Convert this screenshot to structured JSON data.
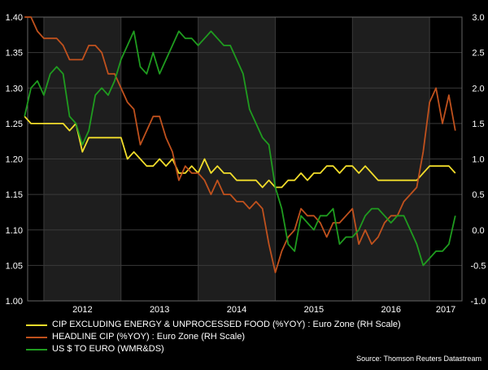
{
  "chart_data": {
    "type": "line",
    "title": "",
    "source": "Source: Thomson Reuters Datastream",
    "x_tick_labels": [
      "2012",
      "2013",
      "2014",
      "2015",
      "2016",
      "2017"
    ],
    "left_axis": {
      "range": [
        1.0,
        1.4
      ],
      "ticks": [
        "1.00",
        "1.05",
        "1.10",
        "1.15",
        "1.20",
        "1.25",
        "1.30",
        "1.35",
        "1.40"
      ]
    },
    "right_axis": {
      "range": [
        -1.0,
        3.0
      ],
      "ticks": [
        "-1.0",
        "-0.5",
        "0.0",
        "0.5",
        "1.0",
        "1.5",
        "2.0",
        "2.5",
        "3.0"
      ]
    },
    "shaded_years": [
      "2012",
      "2014",
      "2016"
    ],
    "grid": true,
    "legend_position": "bottom-left",
    "series": [
      {
        "name": "CIP EXCLUDING ENERGY & UNPROCESSED FOOD (%YOY) : Euro Zone (RH Scale)",
        "axis": "right",
        "color": "#f2dd2b",
        "x": [
          "2011-10",
          "2011-11",
          "2011-12",
          "2012-01",
          "2012-02",
          "2012-03",
          "2012-04",
          "2012-05",
          "2012-06",
          "2012-07",
          "2012-08",
          "2012-09",
          "2012-10",
          "2012-11",
          "2012-12",
          "2013-01",
          "2013-02",
          "2013-03",
          "2013-04",
          "2013-05",
          "2013-06",
          "2013-07",
          "2013-08",
          "2013-09",
          "2013-10",
          "2013-11",
          "2013-12",
          "2014-01",
          "2014-02",
          "2014-03",
          "2014-04",
          "2014-05",
          "2014-06",
          "2014-07",
          "2014-08",
          "2014-09",
          "2014-10",
          "2014-11",
          "2014-12",
          "2015-01",
          "2015-02",
          "2015-03",
          "2015-04",
          "2015-05",
          "2015-06",
          "2015-07",
          "2015-08",
          "2015-09",
          "2015-10",
          "2015-11",
          "2015-12",
          "2016-01",
          "2016-02",
          "2016-03",
          "2016-04",
          "2016-05",
          "2016-06",
          "2016-07",
          "2016-08",
          "2016-09",
          "2016-10",
          "2016-11",
          "2016-12",
          "2017-01",
          "2017-02",
          "2017-03",
          "2017-04",
          "2017-05"
        ],
        "y": [
          1.6,
          1.5,
          1.5,
          1.5,
          1.5,
          1.5,
          1.5,
          1.4,
          1.5,
          1.1,
          1.3,
          1.3,
          1.3,
          1.3,
          1.3,
          1.3,
          1.0,
          1.1,
          1.0,
          0.9,
          0.9,
          1.0,
          0.9,
          1.0,
          0.8,
          0.8,
          0.9,
          0.8,
          1.0,
          0.8,
          0.9,
          0.8,
          0.8,
          0.7,
          0.7,
          0.7,
          0.7,
          0.6,
          0.7,
          0.6,
          0.6,
          0.7,
          0.7,
          0.8,
          0.7,
          0.8,
          0.8,
          0.9,
          0.9,
          0.8,
          0.9,
          0.9,
          0.8,
          0.9,
          0.8,
          0.7,
          0.7,
          0.7,
          0.7,
          0.7,
          0.7,
          0.7,
          0.8,
          0.9,
          0.9,
          0.9,
          0.9,
          0.8
        ]
      },
      {
        "name": "HEADLINE CIP (%YOY) : Euro Zone (RH Scale)",
        "axis": "right",
        "color": "#c0511d",
        "x": [
          "2011-10",
          "2011-11",
          "2011-12",
          "2012-01",
          "2012-02",
          "2012-03",
          "2012-04",
          "2012-05",
          "2012-06",
          "2012-07",
          "2012-08",
          "2012-09",
          "2012-10",
          "2012-11",
          "2012-12",
          "2013-01",
          "2013-02",
          "2013-03",
          "2013-04",
          "2013-05",
          "2013-06",
          "2013-07",
          "2013-08",
          "2013-09",
          "2013-10",
          "2013-11",
          "2013-12",
          "2014-01",
          "2014-02",
          "2014-03",
          "2014-04",
          "2014-05",
          "2014-06",
          "2014-07",
          "2014-08",
          "2014-09",
          "2014-10",
          "2014-11",
          "2014-12",
          "2015-01",
          "2015-02",
          "2015-03",
          "2015-04",
          "2015-05",
          "2015-06",
          "2015-07",
          "2015-08",
          "2015-09",
          "2015-10",
          "2015-11",
          "2015-12",
          "2016-01",
          "2016-02",
          "2016-03",
          "2016-04",
          "2016-05",
          "2016-06",
          "2016-07",
          "2016-08",
          "2016-09",
          "2016-10",
          "2016-11",
          "2016-12",
          "2017-01",
          "2017-02",
          "2017-03",
          "2017-04",
          "2017-05"
        ],
        "y": [
          3.0,
          3.0,
          2.8,
          2.7,
          2.7,
          2.7,
          2.6,
          2.4,
          2.4,
          2.4,
          2.6,
          2.6,
          2.5,
          2.2,
          2.2,
          2.0,
          1.8,
          1.7,
          1.2,
          1.4,
          1.6,
          1.6,
          1.3,
          1.1,
          0.7,
          0.9,
          0.8,
          0.8,
          0.7,
          0.5,
          0.7,
          0.5,
          0.5,
          0.4,
          0.4,
          0.3,
          0.4,
          0.3,
          -0.2,
          -0.6,
          -0.3,
          -0.1,
          0.0,
          0.3,
          0.2,
          0.2,
          0.1,
          -0.1,
          0.1,
          0.1,
          0.2,
          0.3,
          -0.2,
          0.0,
          -0.2,
          -0.1,
          0.1,
          0.2,
          0.2,
          0.4,
          0.5,
          0.6,
          1.1,
          1.8,
          2.0,
          1.5,
          1.9,
          1.4
        ]
      },
      {
        "name": "US $ TO EURO (WMR&DS)",
        "axis": "left",
        "color": "#1f9c1f",
        "x": [
          "2011-10",
          "2011-11",
          "2011-12",
          "2012-01",
          "2012-02",
          "2012-03",
          "2012-04",
          "2012-05",
          "2012-06",
          "2012-07",
          "2012-08",
          "2012-09",
          "2012-10",
          "2012-11",
          "2012-12",
          "2013-01",
          "2013-02",
          "2013-03",
          "2013-04",
          "2013-05",
          "2013-06",
          "2013-07",
          "2013-08",
          "2013-09",
          "2013-10",
          "2013-11",
          "2013-12",
          "2014-01",
          "2014-02",
          "2014-03",
          "2014-04",
          "2014-05",
          "2014-06",
          "2014-07",
          "2014-08",
          "2014-09",
          "2014-10",
          "2014-11",
          "2014-12",
          "2015-01",
          "2015-02",
          "2015-03",
          "2015-04",
          "2015-05",
          "2015-06",
          "2015-07",
          "2015-08",
          "2015-09",
          "2015-10",
          "2015-11",
          "2015-12",
          "2016-01",
          "2016-02",
          "2016-03",
          "2016-04",
          "2016-05",
          "2016-06",
          "2016-07",
          "2016-08",
          "2016-09",
          "2016-10",
          "2016-11",
          "2016-12",
          "2017-01",
          "2017-02",
          "2017-03",
          "2017-04",
          "2017-05"
        ],
        "y": [
          1.26,
          1.3,
          1.31,
          1.29,
          1.32,
          1.33,
          1.32,
          1.26,
          1.25,
          1.22,
          1.24,
          1.29,
          1.3,
          1.29,
          1.31,
          1.34,
          1.36,
          1.38,
          1.33,
          1.32,
          1.35,
          1.32,
          1.34,
          1.36,
          1.38,
          1.37,
          1.37,
          1.36,
          1.37,
          1.38,
          1.37,
          1.36,
          1.36,
          1.34,
          1.32,
          1.27,
          1.25,
          1.23,
          1.22,
          1.16,
          1.13,
          1.08,
          1.07,
          1.12,
          1.11,
          1.1,
          1.12,
          1.12,
          1.13,
          1.08,
          1.09,
          1.09,
          1.1,
          1.12,
          1.13,
          1.13,
          1.12,
          1.11,
          1.12,
          1.12,
          1.1,
          1.08,
          1.05,
          1.06,
          1.07,
          1.07,
          1.08,
          1.12
        ]
      }
    ]
  }
}
